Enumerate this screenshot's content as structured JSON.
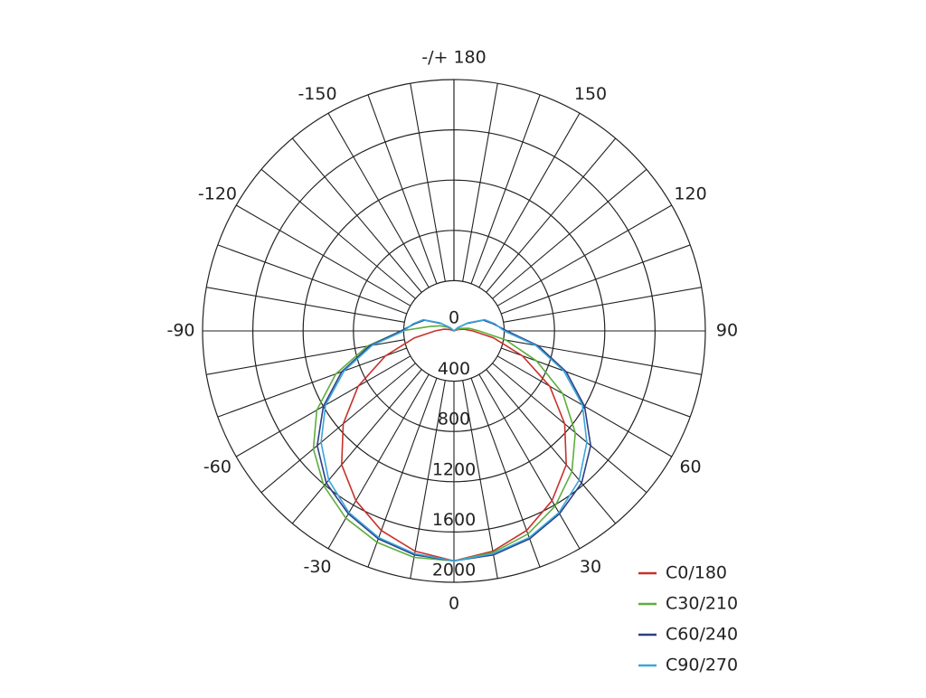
{
  "chart_data": {
    "type": "polar",
    "angles": [
      -180,
      -170,
      -160,
      -150,
      -140,
      -130,
      -120,
      -110,
      -100,
      -90,
      -80,
      -70,
      -60,
      -50,
      -40,
      -30,
      -20,
      -10,
      0,
      10,
      20,
      30,
      40,
      50,
      60,
      70,
      80,
      90,
      100,
      110,
      120,
      130,
      140,
      150,
      160,
      170,
      180
    ],
    "series": [
      {
        "name": "C0/180",
        "color": "#c8312b",
        "values": [
          0,
          0,
          0,
          0,
          0,
          0,
          0,
          30,
          80,
          150,
          320,
          580,
          880,
          1150,
          1390,
          1560,
          1690,
          1780,
          1830,
          1780,
          1690,
          1560,
          1390,
          1150,
          880,
          580,
          320,
          150,
          80,
          30,
          0,
          0,
          0,
          0,
          0,
          0,
          0
        ]
      },
      {
        "name": "C30/210",
        "color": "#5cae3c",
        "values": [
          0,
          0,
          0,
          0,
          0,
          20,
          60,
          120,
          200,
          420,
          700,
          1000,
          1260,
          1460,
          1610,
          1720,
          1790,
          1830,
          1830,
          1790,
          1720,
          1610,
          1460,
          1260,
          1000,
          700,
          420,
          200,
          120,
          60,
          20,
          0,
          0,
          0,
          0,
          0,
          0
        ]
      },
      {
        "name": "C60/240",
        "color": "#2e3f86",
        "values": [
          0,
          0,
          0,
          0,
          0,
          40,
          120,
          250,
          320,
          420,
          680,
          950,
          1200,
          1420,
          1580,
          1680,
          1760,
          1810,
          1830,
          1810,
          1760,
          1680,
          1580,
          1420,
          1200,
          950,
          680,
          420,
          320,
          250,
          120,
          40,
          0,
          0,
          0,
          0,
          0
        ]
      },
      {
        "name": "C90/270",
        "color": "#3aa6dc",
        "values": [
          0,
          0,
          0,
          0,
          0,
          40,
          130,
          260,
          330,
          400,
          660,
          930,
          1180,
          1380,
          1550,
          1670,
          1750,
          1800,
          1830,
          1800,
          1750,
          1670,
          1550,
          1380,
          1180,
          930,
          660,
          400,
          330,
          260,
          130,
          40,
          0,
          0,
          0,
          0,
          0
        ]
      }
    ],
    "rlim": [
      0,
      2000
    ],
    "rticks": [
      0,
      400,
      800,
      1200,
      1600,
      2000
    ],
    "angle_ticks": [
      0,
      30,
      60,
      90,
      120,
      150,
      {
        "value": 180,
        "label": "-/+ 180"
      },
      -150,
      -120,
      -90,
      -60,
      -30
    ]
  }
}
